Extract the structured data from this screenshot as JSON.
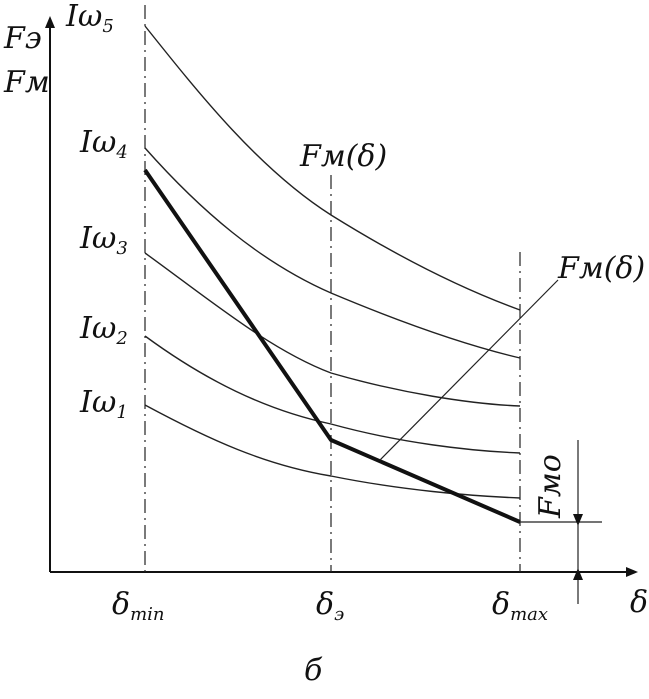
{
  "figure": {
    "y_axis_label_top": "Fэ",
    "y_axis_label_bottom": "Fм",
    "x_axis_label": "δ",
    "caption": "б",
    "curve_labels": [
      {
        "base": "Iω",
        "sub": "5"
      },
      {
        "base": "Iω",
        "sub": "4"
      },
      {
        "base": "Iω",
        "sub": "3"
      },
      {
        "base": "Iω",
        "sub": "2"
      },
      {
        "base": "Iω",
        "sub": "1"
      }
    ],
    "x_ticks": [
      {
        "base": "δ",
        "sub": "min"
      },
      {
        "base": "δ",
        "sub": "э"
      },
      {
        "base": "δ",
        "sub": "max"
      }
    ],
    "load_label_top": "Fм(δ)",
    "load_label_right": "Fм(δ)",
    "offset_label": "Fмо"
  }
}
